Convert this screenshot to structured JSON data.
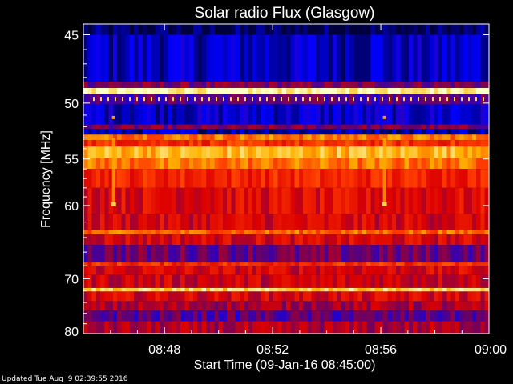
{
  "chart_data": {
    "type": "heatmap",
    "title": "Solar radio Flux (Glasgow)",
    "xlabel": "Start Time (09-Jan-16 08:45:00)",
    "ylabel": "Frequency [MHz]",
    "x_start": "08:45",
    "x_end": "09:00",
    "xticks": [
      "08:48",
      "08:52",
      "08:56",
      "09:00"
    ],
    "yticks": [
      "45",
      "50",
      "55",
      "60",
      "70",
      "80"
    ],
    "ylim": [
      44.3,
      80
    ],
    "y_scale": "reciprocal",
    "colormap": [
      "#00003c",
      "#0000ff",
      "#6a0064",
      "#dc0000",
      "#ff3c00",
      "#ffb400",
      "#ffffc8"
    ],
    "bands": [
      {
        "freq": [
          44.3,
          45.0
        ],
        "level": 0.02
      },
      {
        "freq": [
          45.0,
          48.3
        ],
        "level": 0.12
      },
      {
        "freq": [
          48.3,
          48.8
        ],
        "level": 0.35
      },
      {
        "freq": [
          48.8,
          49.3
        ],
        "level": 0.98
      },
      {
        "freq": [
          49.3,
          50.1
        ],
        "level": 0.3
      },
      {
        "freq": [
          50.1,
          51.8
        ],
        "level": 0.14
      },
      {
        "freq": [
          51.8,
          52.2
        ],
        "level": 0.35
      },
      {
        "freq": [
          52.2,
          52.7
        ],
        "level": 0.1
      },
      {
        "freq": [
          52.7,
          53.2
        ],
        "level": 0.75
      },
      {
        "freq": [
          53.2,
          53.8
        ],
        "level": 0.62
      },
      {
        "freq": [
          53.8,
          54.9
        ],
        "level": 0.85
      },
      {
        "freq": [
          54.9,
          56.0
        ],
        "level": 0.74
      },
      {
        "freq": [
          56.0,
          58.0
        ],
        "level": 0.6
      },
      {
        "freq": [
          58.0,
          61.0
        ],
        "level": 0.52
      },
      {
        "freq": [
          61.0,
          63.0
        ],
        "level": 0.5
      },
      {
        "freq": [
          63.0,
          63.6
        ],
        "level": 0.72
      },
      {
        "freq": [
          63.6,
          65.0
        ],
        "level": 0.5
      },
      {
        "freq": [
          65.0,
          67.5
        ],
        "level": 0.33
      },
      {
        "freq": [
          67.5,
          68.0
        ],
        "level": 0.62
      },
      {
        "freq": [
          68.0,
          69.4
        ],
        "level": 0.5
      },
      {
        "freq": [
          69.4,
          71.5
        ],
        "level": 0.48
      },
      {
        "freq": [
          71.5,
          72.1
        ],
        "level": 0.9
      },
      {
        "freq": [
          72.1,
          73.8
        ],
        "level": 0.5
      },
      {
        "freq": [
          73.8,
          75.5
        ],
        "level": 0.42
      },
      {
        "freq": [
          75.5,
          77.5
        ],
        "level": 0.3
      },
      {
        "freq": [
          77.5,
          80.0
        ],
        "level": 0.42
      }
    ],
    "bursts": [
      {
        "time": "08:46:07",
        "freq": [
          53.0,
          60.0
        ]
      },
      {
        "time": "08:56:08",
        "freq": [
          53.0,
          60.0
        ]
      }
    ],
    "grid": false,
    "legend": "none"
  },
  "footer": "Updated Tue Aug  9 02:39:55 2016"
}
